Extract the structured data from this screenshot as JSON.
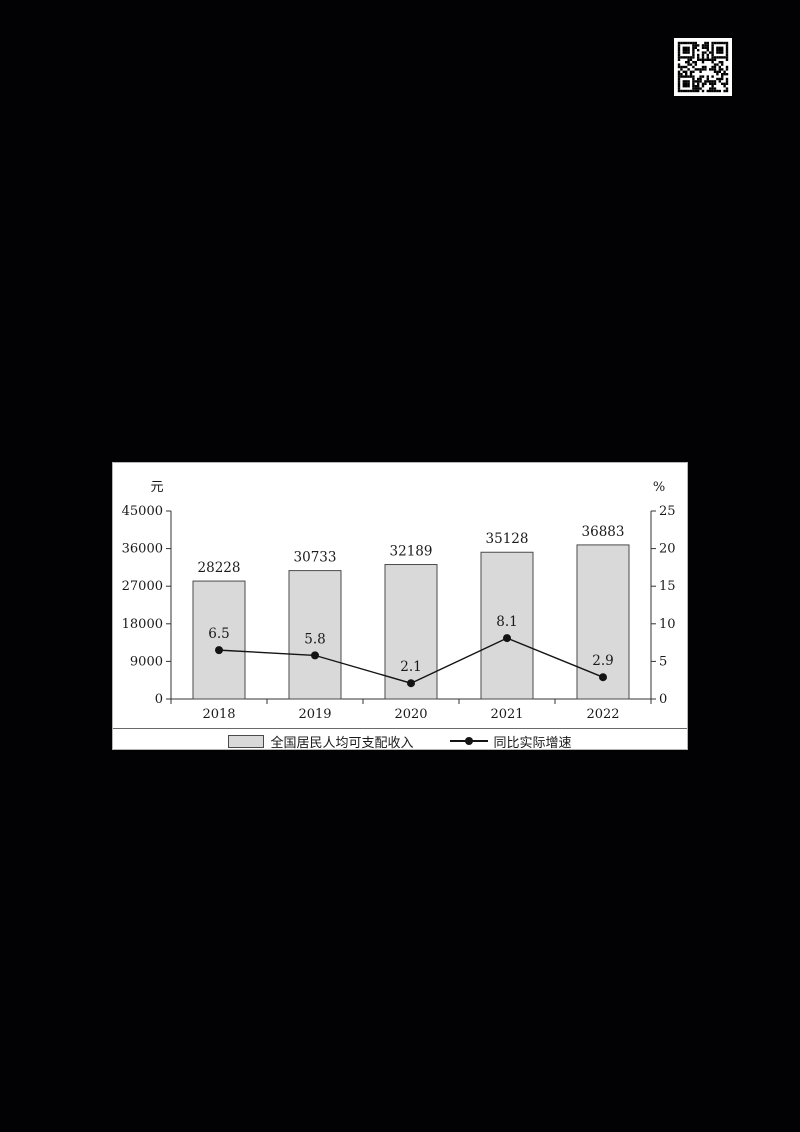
{
  "page": {
    "background": "#020204"
  },
  "chart_data": {
    "type": "bar+line",
    "categories": [
      "2018",
      "2019",
      "2020",
      "2021",
      "2022"
    ],
    "series": [
      {
        "name": "全国居民人均可支配收入",
        "type": "bar",
        "axis": "left",
        "values": [
          28228,
          30733,
          32189,
          35128,
          36883
        ],
        "labels": [
          "28228",
          "30733",
          "32189",
          "35128",
          "36883"
        ]
      },
      {
        "name": "同比实际增速",
        "type": "line",
        "axis": "right",
        "values": [
          6.5,
          5.8,
          2.1,
          8.1,
          2.9
        ],
        "labels": [
          "6.5",
          "5.8",
          "2.1",
          "8.1",
          "2.9"
        ]
      }
    ],
    "left_axis": {
      "unit": "元",
      "ticks": [
        0,
        9000,
        18000,
        27000,
        36000,
        45000
      ],
      "min": 0,
      "max": 45000
    },
    "right_axis": {
      "unit": "%",
      "ticks": [
        0,
        5,
        10,
        15,
        20,
        25
      ],
      "min": 0,
      "max": 25
    },
    "legend_position": "bottom",
    "grid": false,
    "colors": {
      "bar_fill": "#d9d9d9",
      "bar_border": "#4a4a4a",
      "line": "#141414",
      "axis": "#333333",
      "text": "#1a1a1a"
    }
  }
}
